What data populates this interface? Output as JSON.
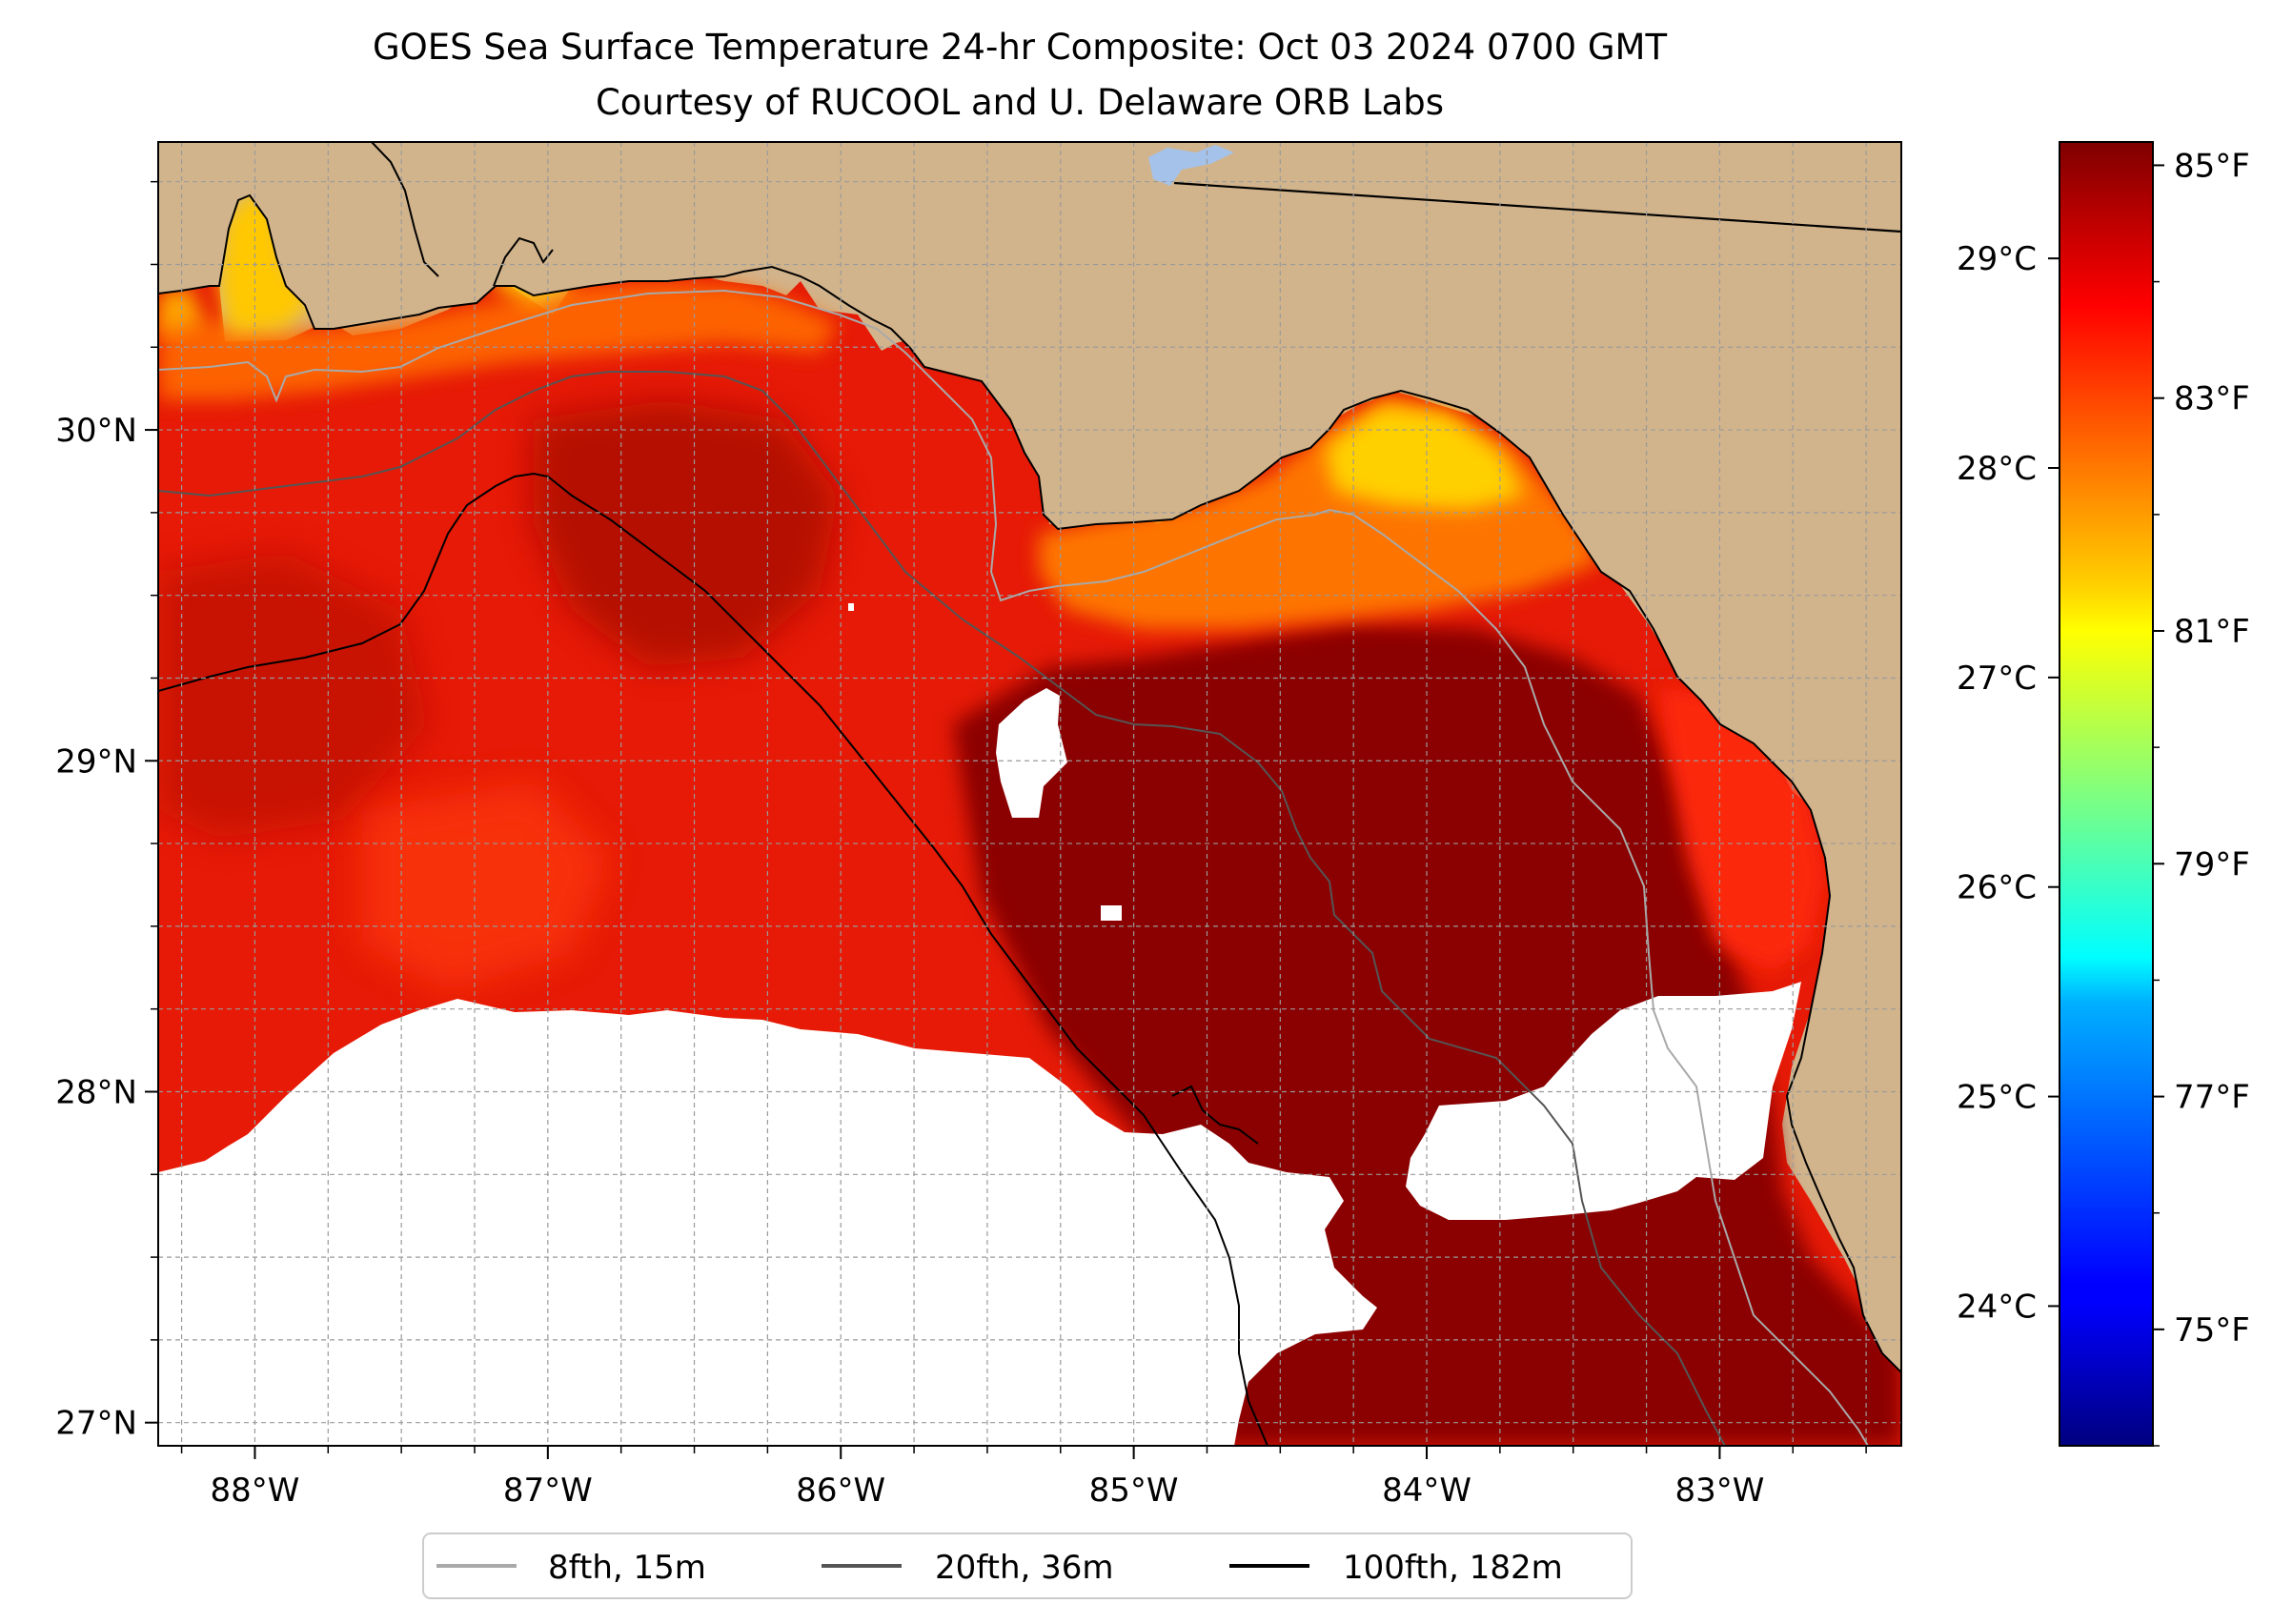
{
  "title": {
    "line1": "GOES Sea Surface Temperature 24-hr Composite: Oct 03 2024 0700 GMT",
    "line2": "Courtesy of RUCOOL and U. Delaware ORB Labs"
  },
  "map": {
    "lon_range": [
      -88.33,
      -82.38
    ],
    "lat_range": [
      26.93,
      30.87
    ],
    "x_ticks": [
      {
        "value": -88,
        "label": "88°W"
      },
      {
        "value": -87,
        "label": "87°W"
      },
      {
        "value": -86,
        "label": "86°W"
      },
      {
        "value": -85,
        "label": "85°W"
      },
      {
        "value": -84,
        "label": "84°W"
      },
      {
        "value": -83,
        "label": "83°W"
      }
    ],
    "y_ticks": [
      {
        "value": 27,
        "label": "27°N"
      },
      {
        "value": 28,
        "label": "28°N"
      },
      {
        "value": 29,
        "label": "29°N"
      },
      {
        "value": 30,
        "label": "30°N"
      }
    ],
    "grid": "dashed every 0.25°",
    "land_color": "#d2b48c",
    "no_data_color": "#ffffff",
    "lake_color": "#a4c2ea"
  },
  "colorbar": {
    "colormap": "jet",
    "range_f": [
      74.0,
      85.2
    ],
    "celsius_ticks": [
      {
        "value": 24,
        "label": "24°C"
      },
      {
        "value": 25,
        "label": "25°C"
      },
      {
        "value": 26,
        "label": "26°C"
      },
      {
        "value": 27,
        "label": "27°C"
      },
      {
        "value": 28,
        "label": "28°C"
      },
      {
        "value": 29,
        "label": "29°C"
      }
    ],
    "fahrenheit_ticks": [
      {
        "value": 75,
        "label": "75°F"
      },
      {
        "value": 77,
        "label": "77°F"
      },
      {
        "value": 79,
        "label": "79°F"
      },
      {
        "value": 81,
        "label": "81°F"
      },
      {
        "value": 83,
        "label": "83°F"
      },
      {
        "value": 85,
        "label": "85°F"
      }
    ]
  },
  "legend": {
    "placement": "bottom-center",
    "items": [
      {
        "label": "8fth, 15m",
        "color": "#a9a9a9"
      },
      {
        "label": "20fth, 36m",
        "color": "#555555"
      },
      {
        "label": "100fth, 182m",
        "color": "#000000"
      }
    ]
  }
}
